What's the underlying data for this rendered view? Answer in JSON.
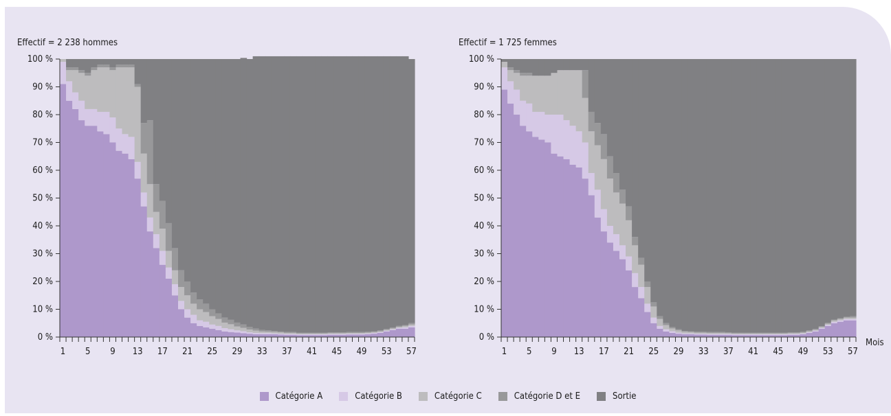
{
  "colors": {
    "panel_bg": "#e8e4f2",
    "cat_a": "#ae98cb",
    "cat_b": "#d6c9e6",
    "cat_c": "#bdbcbe",
    "cat_de": "#98989a",
    "sortie": "#808083"
  },
  "legend": [
    {
      "label": "Catégorie A",
      "color": "#ae98cb"
    },
    {
      "label": "Catégorie B",
      "color": "#d6c9e6"
    },
    {
      "label": "Catégorie C",
      "color": "#bdbcbe"
    },
    {
      "label": "Catégorie D et E",
      "color": "#98989a"
    },
    {
      "label": "Sortie",
      "color": "#808083"
    }
  ],
  "chart_data": [
    {
      "type": "area",
      "title": "Effectif = 2 238 hommes",
      "xlabel": "",
      "ylabel": "",
      "x": [
        1,
        2,
        3,
        4,
        5,
        6,
        7,
        8,
        9,
        10,
        11,
        12,
        13,
        14,
        15,
        16,
        17,
        18,
        19,
        20,
        21,
        22,
        23,
        24,
        25,
        26,
        27,
        28,
        29,
        30,
        31,
        32,
        33,
        34,
        35,
        36,
        37,
        38,
        39,
        40,
        41,
        42,
        43,
        44,
        45,
        46,
        47,
        48,
        49,
        50,
        51,
        52,
        53,
        54,
        55,
        56,
        57
      ],
      "xticks": [
        "1",
        "5",
        "9",
        "13",
        "17",
        "21",
        "25",
        "29",
        "33",
        "37",
        "41",
        "45",
        "49",
        "53",
        "57"
      ],
      "yticks": [
        "0 %",
        "10 %",
        "20 %",
        "30 %",
        "40 %",
        "50 %",
        "60 %",
        "70 %",
        "80 %",
        "90 %",
        "100 %"
      ],
      "ylim": [
        0,
        100
      ],
      "series": [
        {
          "name": "Catégorie A",
          "values": [
            91,
            85,
            82,
            78,
            76,
            76,
            74,
            73,
            70,
            67,
            66,
            64,
            57,
            47,
            38,
            32,
            26,
            21,
            15,
            10,
            7,
            5,
            4,
            3.5,
            3,
            2.5,
            2,
            1.8,
            1.6,
            1.4,
            1.2,
            1.0,
            1.0,
            1.0,
            1.0,
            0.9,
            0.8,
            0.8,
            0.7,
            0.7,
            0.7,
            0.7,
            0.7,
            0.8,
            0.8,
            0.8,
            0.9,
            0.9,
            0.9,
            1.0,
            1.2,
            1.5,
            2.0,
            2.5,
            3.0,
            3.0,
            3.5
          ]
        },
        {
          "name": "Catégorie B",
          "values": [
            8,
            7,
            6,
            7,
            6,
            6,
            7,
            8,
            9,
            8,
            7,
            8,
            6,
            5,
            5,
            5,
            5,
            4,
            4,
            3,
            3,
            3,
            2,
            2,
            1.5,
            1.5,
            1.2,
            1.0,
            0.8,
            0.7,
            0.5,
            0.5,
            0.4,
            0.4,
            0.3,
            0.3,
            0.3,
            0.3,
            0.3,
            0.3,
            0.3,
            0.3,
            0.3,
            0.3,
            0.3,
            0.3,
            0.3,
            0.3,
            0.3,
            0.3,
            0.3,
            0.3,
            0.3,
            0.3,
            0.3,
            0.5,
            0.5
          ]
        },
        {
          "name": "Catégorie C",
          "values": [
            1,
            4,
            8,
            10,
            12,
            14,
            16,
            16,
            17,
            22,
            24,
            25,
            27,
            14,
            12,
            8,
            8,
            6,
            5,
            5,
            5,
            4,
            4,
            3.5,
            3,
            2.5,
            2,
            1.8,
            1.4,
            1.2,
            1.0,
            0.8,
            0.6,
            0.5,
            0.5,
            0.5,
            0.4,
            0.4,
            0.3,
            0.3,
            0.3,
            0.3,
            0.3,
            0.3,
            0.3,
            0.3,
            0.3,
            0.3,
            0.3,
            0.3,
            0.3,
            0.3,
            0.3,
            0.3,
            0.4,
            0.5,
            0.5
          ]
        },
        {
          "name": "Catégorie D et E",
          "values": [
            0,
            1,
            1,
            1,
            1,
            1,
            1,
            1,
            1,
            1,
            1,
            1,
            1,
            11,
            23,
            10,
            10,
            10,
            8,
            6,
            5,
            4,
            3.5,
            3,
            2.5,
            2,
            1.8,
            1.6,
            1.4,
            1.2,
            1.0,
            0.8,
            0.6,
            0.5,
            0.4,
            0.3,
            0.3,
            0.3,
            0.3,
            0.3,
            0.3,
            0.3,
            0.3,
            0.3,
            0.3,
            0.3,
            0.3,
            0.3,
            0.3,
            0.3,
            0.3,
            0.3,
            0.3,
            0.3,
            0.3,
            0.3,
            0.5
          ]
        },
        {
          "name": "Sortie",
          "values": [
            0,
            3,
            3,
            4,
            5,
            3,
            2,
            2,
            3,
            2,
            2,
            2,
            9,
            23,
            22,
            45,
            51,
            59,
            68,
            76,
            80,
            84,
            86.5,
            88,
            90,
            91.5,
            93,
            93.8,
            94.8,
            95.9,
            96.3,
            97.9,
            98.4,
            98.6,
            98.8,
            99,
            99.2,
            99.2,
            99.4,
            99.4,
            99.4,
            99.4,
            99.4,
            99.3,
            99.3,
            99.3,
            99.2,
            99.2,
            99.2,
            99.1,
            98.9,
            98.6,
            98.1,
            97.6,
            97.0,
            96.7,
            95.0
          ]
        }
      ]
    },
    {
      "type": "area",
      "title": "Effectif = 1 725 femmes",
      "xlabel": "Mois",
      "ylabel": "",
      "x": [
        1,
        2,
        3,
        4,
        5,
        6,
        7,
        8,
        9,
        10,
        11,
        12,
        13,
        14,
        15,
        16,
        17,
        18,
        19,
        20,
        21,
        22,
        23,
        24,
        25,
        26,
        27,
        28,
        29,
        30,
        31,
        32,
        33,
        34,
        35,
        36,
        37,
        38,
        39,
        40,
        41,
        42,
        43,
        44,
        45,
        46,
        47,
        48,
        49,
        50,
        51,
        52,
        53,
        54,
        55,
        56,
        57
      ],
      "xticks": [
        "1",
        "5",
        "9",
        "13",
        "17",
        "21",
        "25",
        "29",
        "33",
        "37",
        "41",
        "45",
        "49",
        "53",
        "57"
      ],
      "yticks": [
        "0 %",
        "10 %",
        "20 %",
        "30 %",
        "40 %",
        "50 %",
        "60 %",
        "70 %",
        "80 %",
        "90 %",
        "100 %"
      ],
      "ylim": [
        0,
        100
      ],
      "series": [
        {
          "name": "Catégorie A",
          "values": [
            89,
            84,
            80,
            76,
            74,
            72,
            71,
            70,
            66,
            65,
            64,
            62,
            61,
            57,
            51,
            43,
            38,
            34,
            31,
            28,
            24,
            18,
            14,
            9,
            5,
            3,
            2,
            1.5,
            1.2,
            1.0,
            1.0,
            0.9,
            0.9,
            0.8,
            0.8,
            0.8,
            0.8,
            0.7,
            0.7,
            0.7,
            0.7,
            0.7,
            0.7,
            0.7,
            0.7,
            0.7,
            0.8,
            0.8,
            1.0,
            1.5,
            2.0,
            3.0,
            4.0,
            5.0,
            5.5,
            6.0,
            6.0
          ]
        },
        {
          "name": "Catégorie B",
          "values": [
            8,
            8,
            9,
            9,
            10,
            9,
            10,
            10,
            14,
            15,
            14,
            14,
            13,
            13,
            8,
            10,
            8,
            6,
            6,
            5,
            5,
            5,
            4,
            3,
            2,
            1,
            0.8,
            0.6,
            0.4,
            0.3,
            0.3,
            0.3,
            0.3,
            0.3,
            0.3,
            0.3,
            0.3,
            0.3,
            0.3,
            0.3,
            0.3,
            0.3,
            0.3,
            0.3,
            0.3,
            0.3,
            0.3,
            0.3,
            0.3,
            0.3,
            0.3,
            0.3,
            0.4,
            0.5,
            0.5,
            0.5,
            0.5
          ]
        },
        {
          "name": "Catégorie C",
          "values": [
            2,
            4,
            6,
            9,
            10,
            13,
            13,
            14,
            15,
            16,
            18,
            20,
            22,
            16,
            15,
            16,
            18,
            17,
            15,
            15,
            13,
            10,
            8,
            6,
            4,
            2.5,
            1.5,
            1.0,
            0.8,
            0.6,
            0.5,
            0.4,
            0.4,
            0.4,
            0.4,
            0.4,
            0.3,
            0.3,
            0.3,
            0.3,
            0.3,
            0.3,
            0.3,
            0.3,
            0.3,
            0.3,
            0.3,
            0.3,
            0.3,
            0.3,
            0.3,
            0.3,
            0.4,
            0.5,
            0.5,
            0.5,
            0.5
          ]
        },
        {
          "name": "Catégorie D et E",
          "values": [
            0,
            1,
            1,
            1,
            1,
            0,
            0,
            0,
            0,
            0,
            0,
            0,
            0,
            10,
            7,
            8,
            9,
            8,
            7,
            5,
            5,
            3,
            2.5,
            2,
            1.5,
            1,
            0.7,
            0.5,
            0.4,
            0.3,
            0.3,
            0.3,
            0.3,
            0.3,
            0.3,
            0.3,
            0.3,
            0.3,
            0.3,
            0.3,
            0.3,
            0.3,
            0.3,
            0.3,
            0.3,
            0.3,
            0.3,
            0.3,
            0.3,
            0.3,
            0.3,
            0.3,
            0.3,
            0.3,
            0.3,
            0.3,
            0.5
          ]
        },
        {
          "name": "Sortie",
          "values": [
            1,
            3,
            4,
            5,
            5,
            6,
            6,
            6,
            5,
            4,
            4,
            4,
            4,
            4,
            19,
            23,
            27,
            35,
            41,
            47,
            53,
            64,
            71.5,
            80,
            87.5,
            92.5,
            95,
            96.4,
            97.2,
            97.8,
            97.9,
            98.1,
            98.1,
            98.2,
            98.2,
            98.2,
            98.3,
            98.4,
            98.4,
            98.4,
            98.4,
            98.4,
            98.4,
            98.4,
            98.4,
            98.4,
            98.3,
            98.3,
            98.1,
            97.6,
            97.1,
            96.1,
            94.9,
            93.7,
            93.2,
            92.7,
            92.5
          ]
        }
      ]
    }
  ]
}
